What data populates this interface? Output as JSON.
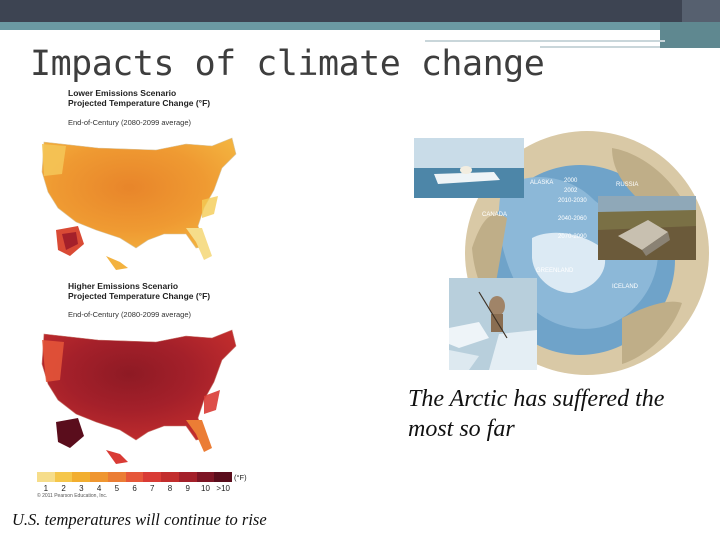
{
  "slide": {
    "title": "Impacts of climate change",
    "caption_left": "U.S. temperatures will continue to rise",
    "caption_right": "The Arctic has suffered  the most so far"
  },
  "maps": {
    "lower": {
      "title1": "Lower Emissions Scenario",
      "title2": "Projected Temperature Change (°F)",
      "subtitle": "End-of-Century (2080-2099 average)"
    },
    "higher": {
      "title1": "Higher Emissions Scenario",
      "title2": "Projected Temperature Change (°F)",
      "subtitle": "End-of-Century (2080-2099 average)"
    },
    "legend": {
      "values": [
        "1",
        "2",
        "3",
        "4",
        "5",
        "6",
        "7",
        "8",
        "9",
        "10",
        ">10"
      ],
      "colors": [
        "#f6dd8a",
        "#f5c64a",
        "#f2ae2f",
        "#ef9630",
        "#eb7d35",
        "#e6573a",
        "#d93b35",
        "#c22d2d",
        "#a4202a",
        "#7d1525",
        "#5a0d1c"
      ],
      "unit": "(°F)",
      "copyright": "© 2011 Pearson Education, Inc."
    }
  },
  "arctic": {
    "years": [
      "2000",
      "2002",
      "2010-2030",
      "2040-2060",
      "2070-2090"
    ],
    "labels": [
      "ALASKA",
      "RUSSIA",
      "CANADA",
      "GREENLAND",
      "ICELAND"
    ]
  }
}
